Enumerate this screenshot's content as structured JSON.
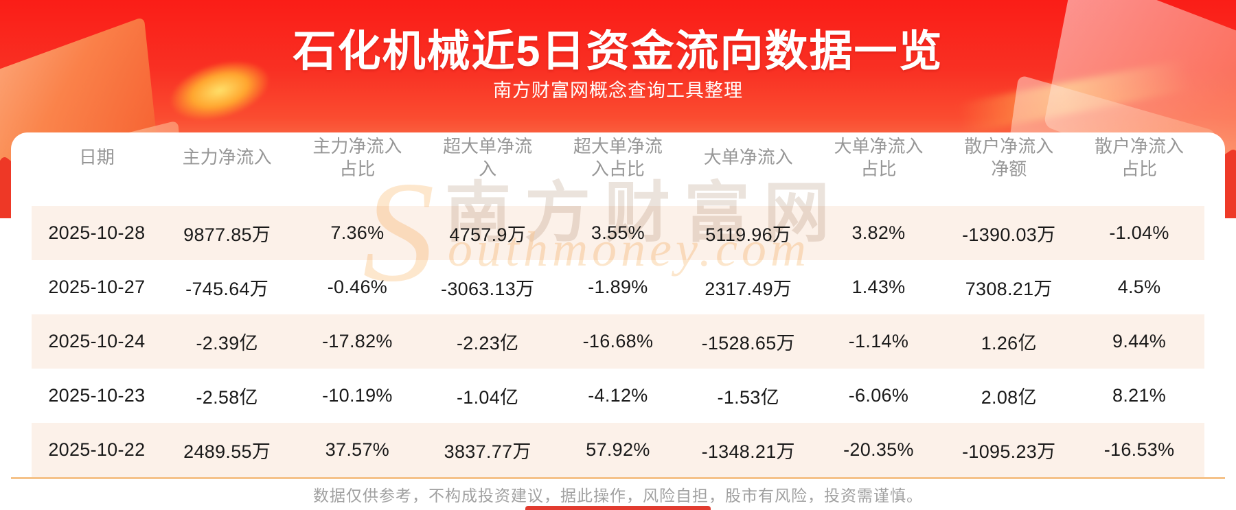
{
  "banner": {
    "title": "石化机械近5日资金流向数据一览",
    "subtitle": "南方财富网概念查询工具整理"
  },
  "watermark": {
    "cn": "南方财富网",
    "script_s": "S",
    "script_en": "outhmoney.com"
  },
  "chart_data": {
    "type": "table",
    "title": "石化机械近5日资金流向数据一览",
    "columns": [
      "日期",
      "主力净流入",
      "主力净流入占比",
      "超大单净流入",
      "超大单净流入占比",
      "大单净流入",
      "大单净流入占比",
      "散户净流入净额",
      "散户净流入占比"
    ],
    "rows": [
      [
        "2025-10-28",
        "9877.85万",
        "7.36%",
        "4757.9万",
        "3.55%",
        "5119.96万",
        "3.82%",
        "-1390.03万",
        "-1.04%"
      ],
      [
        "2025-10-27",
        "-745.64万",
        "-0.46%",
        "-3063.13万",
        "-1.89%",
        "2317.49万",
        "1.43%",
        "7308.21万",
        "4.5%"
      ],
      [
        "2025-10-24",
        "-2.39亿",
        "-17.82%",
        "-2.23亿",
        "-16.68%",
        "-1528.65万",
        "-1.14%",
        "1.26亿",
        "9.44%"
      ],
      [
        "2025-10-23",
        "-2.58亿",
        "-10.19%",
        "-1.04亿",
        "-4.12%",
        "-1.53亿",
        "-6.06%",
        "2.08亿",
        "8.21%"
      ],
      [
        "2025-10-22",
        "2489.55万",
        "37.57%",
        "3837.77万",
        "57.92%",
        "-1348.21万",
        "-20.35%",
        "-1095.23万",
        "-16.53%"
      ]
    ]
  },
  "footer": {
    "disclaimer": "数据仅供参考，不构成投资建议，据此操作，风险自担，股市有风险，投资需谨慎。"
  },
  "colors": {
    "banner_red_top": "#fa1d17",
    "banner_red_mid": "#fa4c30",
    "row_stripe": "#fcf1e9",
    "divider_orange": "#f5c289",
    "header_text": "#969696",
    "cell_text": "#191919",
    "footer_text": "#a0a0a0",
    "bottom_bar": "#e23b2f"
  }
}
